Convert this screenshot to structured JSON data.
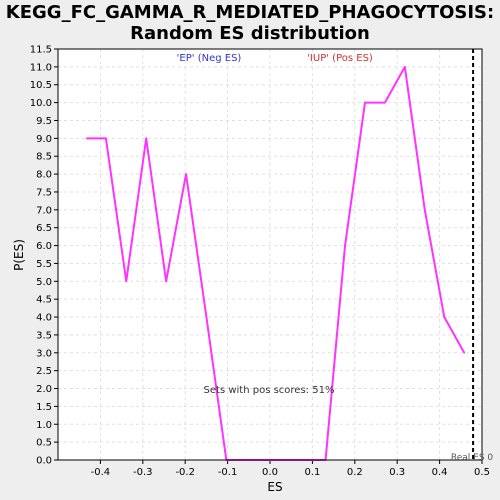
{
  "chart_data": {
    "type": "line",
    "title_lines": [
      "KEGG_FC_GAMMA_R_MEDIATED_PHAGOCYTOSIS:",
      "Random ES distribution"
    ],
    "xlabel": "ES",
    "ylabel": "P(ES)",
    "xlim": [
      -0.5,
      0.5
    ],
    "ylim": [
      0.0,
      11.5
    ],
    "x_ticks": [
      -0.4,
      -0.3,
      -0.2,
      -0.1,
      0.0,
      0.1,
      0.2,
      0.3,
      0.4,
      0.5
    ],
    "x_tick_labels": [
      "-0.4",
      "-0.3",
      "-0.2",
      "-0.1",
      "0.0",
      "0.1",
      "0.2",
      "0.3",
      "0.4",
      "0.5"
    ],
    "y_ticks": [
      0.0,
      0.5,
      1.0,
      1.5,
      2.0,
      2.5,
      3.0,
      3.5,
      4.0,
      4.5,
      5.0,
      5.5,
      6.0,
      6.5,
      7.0,
      7.5,
      8.0,
      8.5,
      9.0,
      9.5,
      10.0,
      10.5,
      11.0,
      11.5
    ],
    "y_tick_labels": [
      "0.0",
      "0.5",
      "1.0",
      "1.5",
      "2.0",
      "2.5",
      "3.0",
      "3.5",
      "4.0",
      "4.5",
      "5.0",
      "5.5",
      "6.0",
      "6.5",
      "7.0",
      "7.5",
      "8.0",
      "8.5",
      "9.0",
      "9.5",
      "10.0",
      "10.5",
      "11.0",
      "11.5"
    ],
    "grid": true,
    "series": [
      {
        "color": "#ff33ff",
        "x": [
          -0.432,
          -0.387,
          -0.339,
          -0.292,
          -0.245,
          -0.198,
          -0.15,
          -0.103,
          -0.057,
          -0.01,
          0.037,
          0.084,
          0.131,
          0.177,
          0.224,
          0.271,
          0.318,
          0.365,
          0.411,
          0.458
        ],
        "y": [
          9.0,
          9.0,
          5.0,
          9.0,
          5.0,
          8.0,
          4.0,
          0.0,
          0.0,
          0.0,
          0.0,
          0.0,
          0.0,
          6.0,
          10.0,
          10.0,
          11.0,
          7.0,
          4.0,
          3.0
        ]
      }
    ],
    "annotations": {
      "neg_label": "'EP' (Neg ES)",
      "pos_label": "'IUP' (Pos ES)",
      "pos_scores": "Sets with pos scores: 51%",
      "real_es": "Real ES 0",
      "real_es_x": 0.479,
      "neg_color": "#3333cc",
      "pos_color": "#cc3333"
    }
  }
}
